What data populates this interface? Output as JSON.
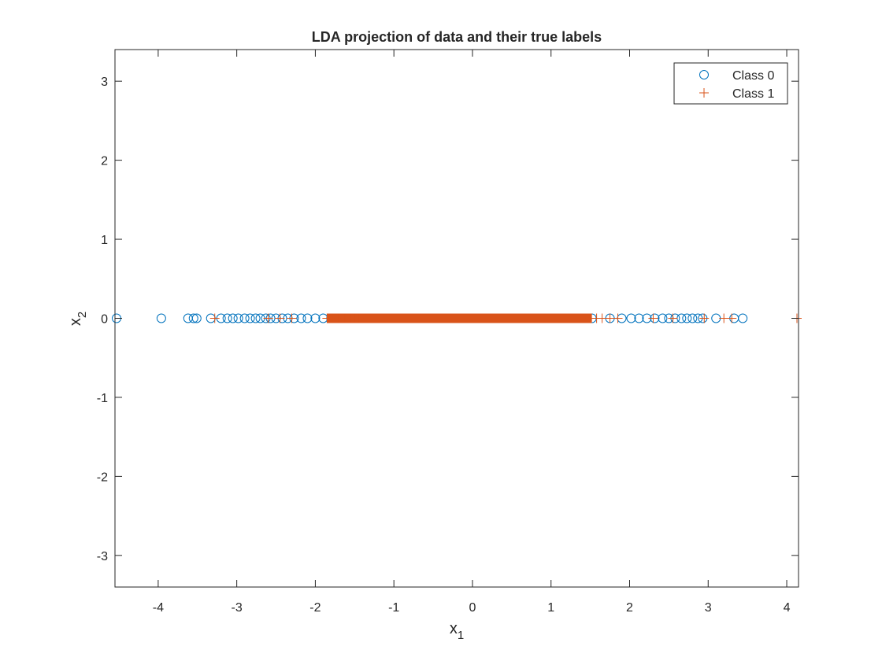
{
  "chart_data": {
    "type": "scatter",
    "title": "LDA projection of data and their true labels",
    "xlabel": {
      "main": "x",
      "sub": "1"
    },
    "ylabel": {
      "main": "x",
      "sub": "2"
    },
    "xlim": [
      -4.55,
      4.15
    ],
    "ylim": [
      -3.4,
      3.4
    ],
    "xticks": [
      -4,
      -3,
      -2,
      -1,
      0,
      1,
      2,
      3,
      4
    ],
    "yticks": [
      -3,
      -2,
      -1,
      0,
      1,
      2,
      3
    ],
    "grid": false,
    "legend_position": "top-right",
    "series": [
      {
        "name": "Class 0",
        "marker": "circle",
        "color": "#0072BD",
        "points": [
          [
            -4.53,
            0
          ],
          [
            -3.96,
            0
          ],
          [
            -3.62,
            0
          ],
          [
            -3.55,
            0
          ],
          [
            -3.51,
            0
          ],
          [
            -3.33,
            0
          ],
          [
            -3.2,
            0
          ],
          [
            -3.12,
            0
          ],
          [
            -3.05,
            0
          ],
          [
            -2.98,
            0
          ],
          [
            -2.9,
            0
          ],
          [
            -2.83,
            0
          ],
          [
            -2.76,
            0
          ],
          [
            -2.7,
            0
          ],
          [
            -2.63,
            0
          ],
          [
            -2.57,
            0
          ],
          [
            -2.5,
            0
          ],
          [
            -2.42,
            0
          ],
          [
            -2.35,
            0
          ],
          [
            -2.27,
            0
          ],
          [
            -2.18,
            0
          ],
          [
            -2.1,
            0
          ],
          [
            -2.0,
            0
          ],
          [
            -1.9,
            0
          ],
          [
            -1.8,
            0
          ],
          [
            -1.7,
            0
          ],
          [
            -1.6,
            0
          ],
          [
            -1.5,
            0
          ],
          [
            1.3,
            0
          ],
          [
            1.52,
            0
          ],
          [
            1.75,
            0
          ],
          [
            1.9,
            0
          ],
          [
            2.02,
            0
          ],
          [
            2.12,
            0
          ],
          [
            2.22,
            0
          ],
          [
            2.32,
            0
          ],
          [
            2.42,
            0
          ],
          [
            2.5,
            0
          ],
          [
            2.58,
            0
          ],
          [
            2.66,
            0
          ],
          [
            2.73,
            0
          ],
          [
            2.8,
            0
          ],
          [
            2.87,
            0
          ],
          [
            2.93,
            0
          ],
          [
            3.1,
            0
          ],
          [
            3.33,
            0
          ],
          [
            3.44,
            0
          ]
        ]
      },
      {
        "name": "Class 1",
        "marker": "plus",
        "color": "#D95319",
        "points": [
          [
            -3.28,
            0
          ],
          [
            -2.6,
            0
          ],
          [
            -2.45,
            0
          ],
          [
            -2.3,
            0
          ],
          [
            -1.85,
            0
          ],
          [
            -1.78,
            0
          ],
          [
            -1.7,
            0
          ],
          [
            -1.62,
            0
          ],
          [
            -1.55,
            0
          ],
          [
            -1.5,
            0
          ],
          [
            -1.45,
            0
          ],
          [
            1.5,
            0
          ],
          [
            1.58,
            0
          ],
          [
            1.65,
            0
          ],
          [
            1.75,
            0
          ],
          [
            1.85,
            0
          ],
          [
            2.3,
            0
          ],
          [
            2.55,
            0
          ],
          [
            2.95,
            0
          ],
          [
            3.2,
            0
          ],
          [
            3.3,
            0
          ],
          [
            4.13,
            0
          ]
        ],
        "dense_range": [
          -1.85,
          1.52
        ]
      }
    ]
  }
}
